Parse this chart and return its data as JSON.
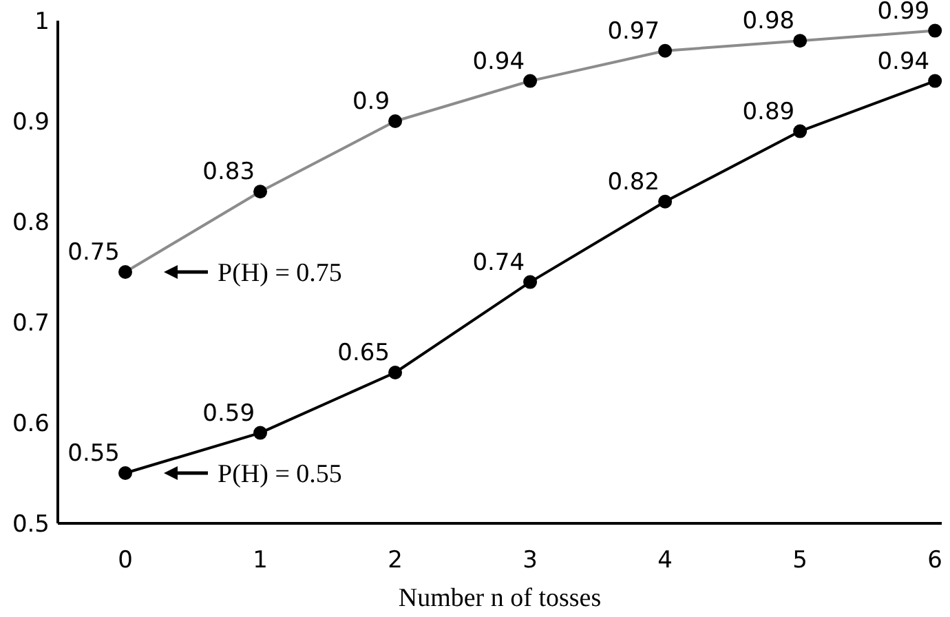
{
  "chart_data": {
    "type": "line",
    "xlabel": "Number n of tosses",
    "x": [
      0,
      1,
      2,
      3,
      4,
      5,
      6
    ],
    "xlim": [
      -0.5,
      6.05
    ],
    "xticks": [
      0,
      1,
      2,
      3,
      4,
      5,
      6
    ],
    "ylim": [
      0.5,
      1
    ],
    "yticks": [
      0.5,
      0.6,
      0.7,
      0.8,
      0.9,
      1
    ],
    "grid": false,
    "marker": "circle",
    "data_labels": true,
    "series": [
      {
        "color": "#8c8c8c",
        "values": [
          0.75,
          0.83,
          0.9,
          0.94,
          0.97,
          0.98,
          0.99
        ]
      },
      {
        "color": "#000000",
        "values": [
          0.55,
          0.59,
          0.65,
          0.74,
          0.82,
          0.89,
          0.94
        ]
      }
    ],
    "annotations": [
      "P(H) = 0.75",
      "P(H) = 0.55"
    ]
  }
}
